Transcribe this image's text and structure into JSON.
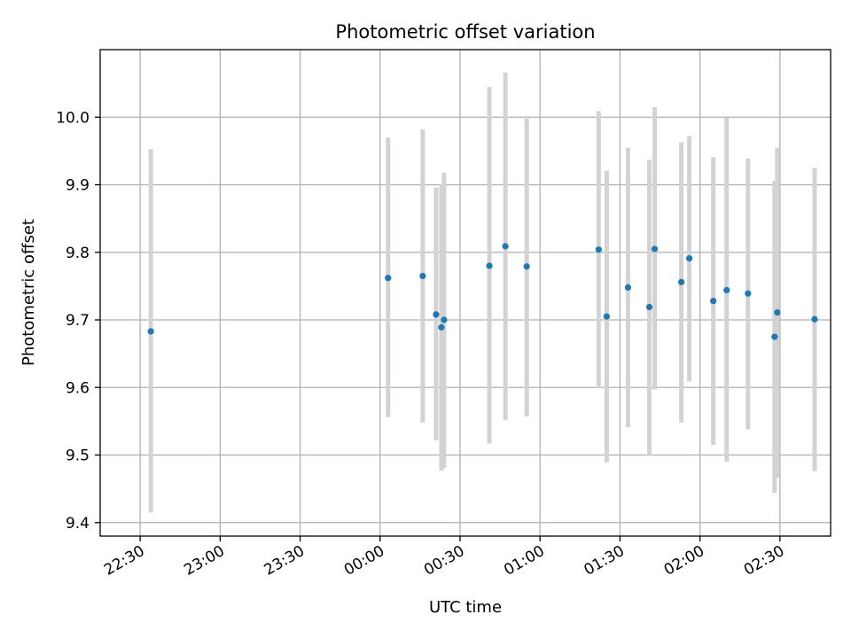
{
  "chart_data": {
    "type": "scatter",
    "title": "Photometric offset variation",
    "xlabel": "UTC time",
    "ylabel": "Photometric offset",
    "xlim": [
      "22:15",
      "02:49"
    ],
    "ylim": [
      9.38,
      10.1
    ],
    "x_ticks": [
      "22:30",
      "23:00",
      "23:30",
      "00:00",
      "00:30",
      "01:00",
      "01:30",
      "02:00",
      "02:30"
    ],
    "y_ticks": [
      "9.4",
      "9.5",
      "9.6",
      "9.7",
      "9.8",
      "9.9",
      "10.0"
    ],
    "grid": true,
    "colors": {
      "point": "#1f77b4",
      "errorbar": "#d3d3d3",
      "grid": "#b0b0b0"
    },
    "points": [
      {
        "x": "22:34",
        "y": 9.683,
        "ylow": 9.415,
        "yhigh": 9.953
      },
      {
        "x": "00:03",
        "y": 9.762,
        "ylow": 9.556,
        "yhigh": 9.97
      },
      {
        "x": "00:16",
        "y": 9.765,
        "ylow": 9.548,
        "yhigh": 9.982
      },
      {
        "x": "00:21",
        "y": 9.708,
        "ylow": 9.522,
        "yhigh": 9.896
      },
      {
        "x": "00:23",
        "y": 9.689,
        "ylow": 9.477,
        "yhigh": 9.901
      },
      {
        "x": "00:24",
        "y": 9.7,
        "ylow": 9.481,
        "yhigh": 9.918
      },
      {
        "x": "00:41",
        "y": 9.78,
        "ylow": 9.517,
        "yhigh": 10.045
      },
      {
        "x": "00:47",
        "y": 9.809,
        "ylow": 9.552,
        "yhigh": 10.066
      },
      {
        "x": "00:55",
        "y": 9.779,
        "ylow": 9.557,
        "yhigh": 10.002
      },
      {
        "x": "01:22",
        "y": 9.804,
        "ylow": 9.599,
        "yhigh": 10.009
      },
      {
        "x": "01:25",
        "y": 9.705,
        "ylow": 9.489,
        "yhigh": 9.921
      },
      {
        "x": "01:33",
        "y": 9.748,
        "ylow": 9.541,
        "yhigh": 9.955
      },
      {
        "x": "01:41",
        "y": 9.719,
        "ylow": 9.5,
        "yhigh": 9.937
      },
      {
        "x": "01:43",
        "y": 9.805,
        "ylow": 9.597,
        "yhigh": 10.015
      },
      {
        "x": "01:53",
        "y": 9.756,
        "ylow": 9.548,
        "yhigh": 9.963
      },
      {
        "x": "01:56",
        "y": 9.791,
        "ylow": 9.609,
        "yhigh": 9.972
      },
      {
        "x": "02:05",
        "y": 9.728,
        "ylow": 9.515,
        "yhigh": 9.941
      },
      {
        "x": "02:10",
        "y": 9.744,
        "ylow": 9.49,
        "yhigh": 9.999
      },
      {
        "x": "02:18",
        "y": 9.739,
        "ylow": 9.538,
        "yhigh": 9.939
      },
      {
        "x": "02:28",
        "y": 9.675,
        "ylow": 9.444,
        "yhigh": 9.906
      },
      {
        "x": "02:29",
        "y": 9.711,
        "ylow": 9.466,
        "yhigh": 9.955
      },
      {
        "x": "02:43",
        "y": 9.701,
        "ylow": 9.476,
        "yhigh": 9.925
      }
    ]
  }
}
